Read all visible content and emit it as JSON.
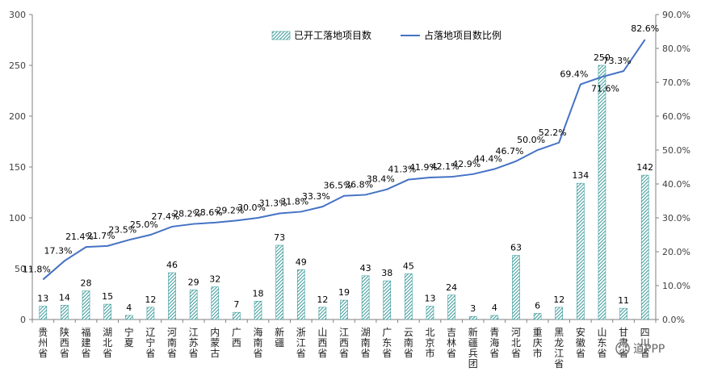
{
  "chart_data": {
    "type": "bar",
    "categories": [
      "贵州省",
      "陕西省",
      "福建省",
      "湖北省",
      "宁夏",
      "辽宁省",
      "河南省",
      "江苏省",
      "内蒙古",
      "广西",
      "海南省",
      "新疆",
      "浙江省",
      "山西省",
      "江西省",
      "湖南省",
      "广东省",
      "云南省",
      "北京市",
      "吉林省",
      "新疆兵团",
      "青海省",
      "河北省",
      "重庆市",
      "黑龙江省",
      "安徽省",
      "山东省",
      "甘肃省",
      "四川省"
    ],
    "series": [
      {
        "name": "已开工落地项目数",
        "type": "bar",
        "axis": "left",
        "values": [
          13,
          14,
          28,
          15,
          4,
          12,
          46,
          29,
          32,
          7,
          18,
          73,
          49,
          12,
          19,
          43,
          38,
          45,
          13,
          24,
          3,
          4,
          63,
          6,
          12,
          134,
          250,
          11,
          142
        ]
      },
      {
        "name": "占落地项目数比例",
        "type": "line",
        "axis": "right",
        "values": [
          11.8,
          17.3,
          21.4,
          21.7,
          23.5,
          25.0,
          27.4,
          28.2,
          28.6,
          29.2,
          30.0,
          31.3,
          31.8,
          33.3,
          36.5,
          36.8,
          38.4,
          41.3,
          41.9,
          42.1,
          42.9,
          44.4,
          46.7,
          50.0,
          52.2,
          69.4,
          71.6,
          73.3,
          82.6
        ],
        "labels": [
          "11.8%",
          "17.3%",
          "21.4%",
          "21.7%",
          "23.5%",
          "25.0%",
          "27.4%",
          "28.2%",
          "28.6%",
          "29.2%",
          "30.0%",
          "31.3%",
          "31.8%",
          "33.3%",
          "36.5%",
          "36.8%",
          "38.4%",
          "41.3%",
          "41.9%",
          "42.1%",
          "42.9%",
          "44.4%",
          "46.7%",
          "50.0%",
          "52.2%",
          "69.4%",
          "71.6%",
          "73.3%",
          "82.6%"
        ]
      }
    ],
    "left_axis": {
      "ylim": [
        0,
        300
      ],
      "ticks": [
        "0",
        "50",
        "100",
        "150",
        "200",
        "250",
        "300"
      ]
    },
    "right_axis": {
      "ylim": [
        0,
        90
      ],
      "ticks": [
        "0.0%",
        "10.0%",
        "20.0%",
        "30.0%",
        "40.0%",
        "50.0%",
        "60.0%",
        "70.0%",
        "80.0%",
        "90.0%"
      ]
    },
    "legend_position": "top-center",
    "grid": false,
    "colors": {
      "bar": "#3a9a9a",
      "bar_hatch_bg": "#ffffff",
      "line": "#4472c4",
      "axis": "#808080"
    }
  },
  "watermark": "道PPP"
}
